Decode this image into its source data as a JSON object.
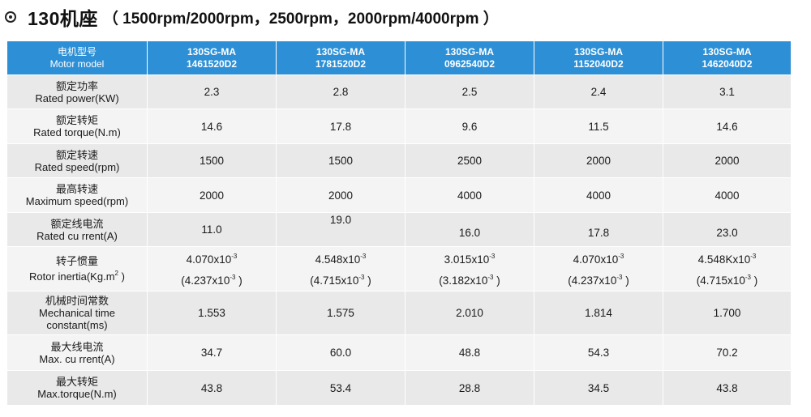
{
  "title": {
    "main": "130机座",
    "sub": "（ 1500rpm/2000rpm，2500rpm，2000rpm/4000rpm ）"
  },
  "header": {
    "label_cn": "电机型号",
    "label_en": "Motor model",
    "models": [
      {
        "line1": "130SG-MA",
        "line2": "1461520D2"
      },
      {
        "line1": "130SG-MA",
        "line2": "1781520D2"
      },
      {
        "line1": "130SG-MA",
        "line2": "0962540D2"
      },
      {
        "line1": "130SG-MA",
        "line2": "1152040D2"
      },
      {
        "line1": "130SG-MA",
        "line2": "1462040D2"
      }
    ]
  },
  "rows": [
    {
      "cn": "额定功率",
      "en": "Rated power(KW)",
      "values": [
        "2.3",
        "2.8",
        "2.5",
        "2.4",
        "3.1"
      ]
    },
    {
      "cn": "额定转矩",
      "en": "Rated torque(N.m)",
      "values": [
        "14.6",
        "17.8",
        "9.6",
        "11.5",
        "14.6"
      ]
    },
    {
      "cn": "额定转速",
      "en": "Rated speed(rpm)",
      "values": [
        "1500",
        "1500",
        "2500",
        "2000",
        "2000"
      ]
    },
    {
      "cn": "最高转速",
      "en": "Maximum speed(rpm)",
      "values": [
        "2000",
        "2000",
        "4000",
        "4000",
        "4000"
      ]
    },
    {
      "cn": "额定线电流",
      "en": "Rated cu rrent(A)",
      "values": [
        "11.0",
        "19.0",
        "16.0",
        "17.8",
        "23.0"
      ]
    },
    {
      "cn": "转子惯量",
      "en": "Rotor inertia(Kg.m",
      "en_sup": "2",
      "en_tail": " )",
      "values": [
        {
          "a": "4.070x10",
          "a_exp": "-3",
          "b": "(4.237x10",
          "b_exp": "-3",
          "b_tail": " )"
        },
        {
          "a": "4.548x10",
          "a_exp": "-3",
          "b": "(4.715x10",
          "b_exp": "-3",
          "b_tail": " )"
        },
        {
          "a": "3.015x10",
          "a_exp": "-3",
          "b": "(3.182x10",
          "b_exp": "-3",
          "b_tail": " )"
        },
        {
          "a": "4.070x10",
          "a_exp": "-3",
          "b": "(4.237x10",
          "b_exp": "-3",
          "b_tail": " )"
        },
        {
          "a": "4.548Kx10",
          "a_exp": "-3",
          "b": "(4.715x10",
          "b_exp": "-3",
          "b_tail": " )"
        }
      ]
    },
    {
      "cn": "机械时间常数",
      "en": "Mechanical time",
      "en2": "constant(ms)",
      "values": [
        "1.553",
        "1.575",
        "2.010",
        "1.814",
        "1.700"
      ]
    },
    {
      "cn": "最大线电流",
      "en": "Max. cu rrent(A)",
      "values": [
        "34.7",
        "60.0",
        "48.8",
        "54.3",
        "70.2"
      ]
    },
    {
      "cn": "最大转矩",
      "en": "Max.torque(N.m)",
      "values": [
        "43.8",
        "53.4",
        "28.8",
        "34.5",
        "43.8"
      ]
    }
  ],
  "colors": {
    "header_bg": "#2d8fd5",
    "row_bg": "#e9e9e9",
    "row_alt_bg": "#f4f4f4"
  }
}
